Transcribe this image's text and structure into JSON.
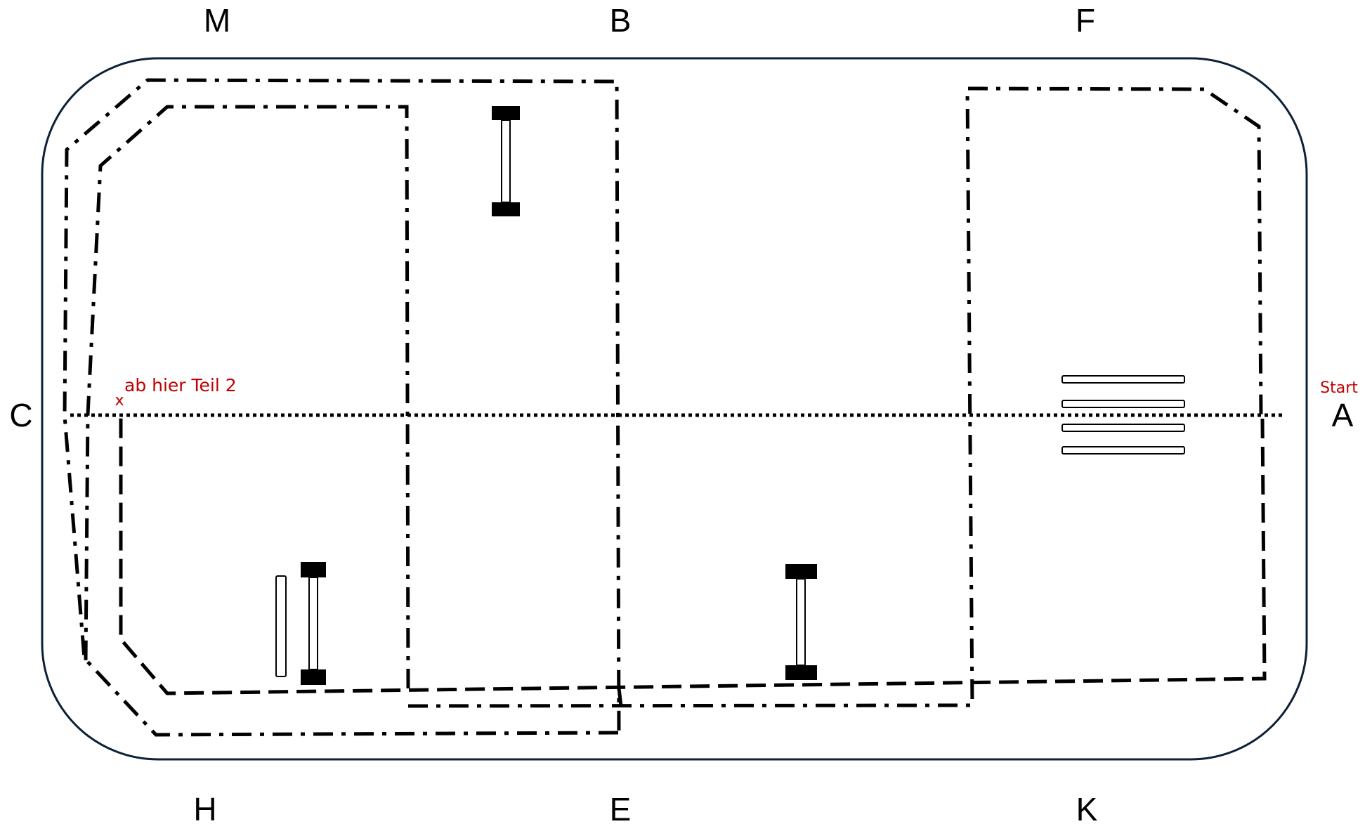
{
  "colors": {
    "arena_border": "#0d2035",
    "line": "#000000",
    "annotation": "#c00000"
  },
  "letters": {
    "m": "M",
    "b": "B",
    "f": "F",
    "c": "C",
    "a": "A",
    "h": "H",
    "e": "E",
    "k": "K"
  },
  "annotations": {
    "start": "Start",
    "part2_marker": "x",
    "part2": "ab hier Teil 2"
  }
}
